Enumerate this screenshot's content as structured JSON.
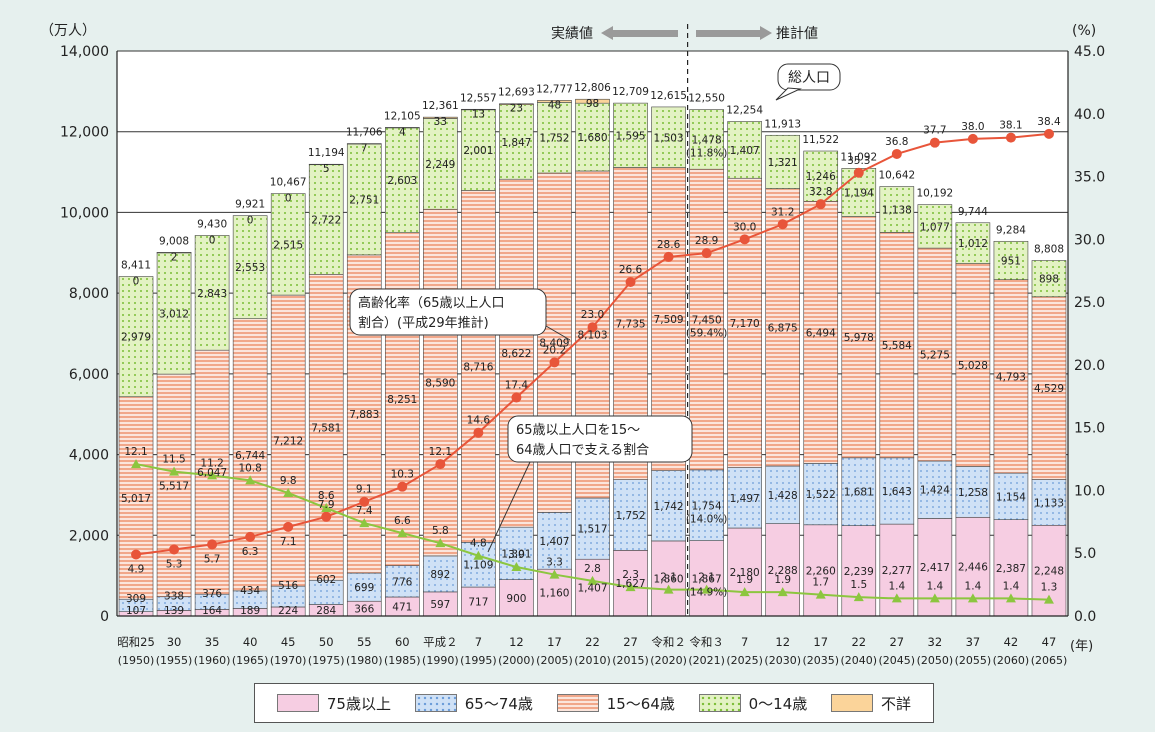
{
  "chart_data": {
    "type": "bar",
    "stacked": true,
    "left_axis_unit": "（万人）",
    "right_axis_unit": "(%)",
    "x_axis_unit": "(年)",
    "y_left_ticks": [
      "0",
      "2,000",
      "4,000",
      "6,000",
      "8,000",
      "10,000",
      "12,000",
      "14,000"
    ],
    "y_left_range": [
      0,
      14000
    ],
    "y_right_ticks": [
      "0.0",
      "5.0",
      "10.0",
      "15.0",
      "20.0",
      "25.0",
      "30.0",
      "35.0",
      "40.0",
      "45.0"
    ],
    "y_right_range": [
      0,
      45
    ],
    "period_labels": {
      "actual": "実績値",
      "projected": "推計値"
    },
    "categories_top": [
      "昭和25",
      "30",
      "35",
      "40",
      "45",
      "50",
      "55",
      "60",
      "平成２",
      "7",
      "12",
      "17",
      "22",
      "27",
      "令和２",
      "令和３",
      "7",
      "12",
      "17",
      "22",
      "27",
      "32",
      "37",
      "42",
      "47"
    ],
    "categories_bottom": [
      "(1950)",
      "(1955)",
      "(1960)",
      "(1965)",
      "(1970)",
      "(1975)",
      "(1980)",
      "(1985)",
      "(1990)",
      "(1995)",
      "(2000)",
      "(2005)",
      "(2010)",
      "(2015)",
      "(2020)",
      "(2021)",
      "(2025)",
      "(2030)",
      "(2035)",
      "(2040)",
      "(2045)",
      "(2050)",
      "(2055)",
      "(2060)",
      "(2065)"
    ],
    "series": [
      {
        "name": "75歳以上",
        "values": [
          107,
          139,
          164,
          189,
          224,
          284,
          366,
          471,
          597,
          717,
          900,
          1160,
          1407,
          1627,
          1860,
          1867,
          2180,
          2288,
          2260,
          2239,
          2277,
          2417,
          2446,
          2387,
          2248
        ]
      },
      {
        "name": "65〜74歳",
        "values": [
          309,
          338,
          376,
          434,
          516,
          602,
          699,
          776,
          892,
          1109,
          1301,
          1407,
          1517,
          1752,
          1742,
          1754,
          1497,
          1428,
          1522,
          1681,
          1643,
          1424,
          1258,
          1154,
          1133
        ]
      },
      {
        "name": "15〜64歳",
        "values": [
          5017,
          5517,
          6047,
          6744,
          7212,
          7581,
          7883,
          8251,
          8590,
          8716,
          8622,
          8409,
          8103,
          7735,
          7509,
          7450,
          7170,
          6875,
          6494,
          5978,
          5584,
          5275,
          5028,
          4793,
          4529
        ]
      },
      {
        "name": "0〜14歳",
        "values": [
          2979,
          3012,
          2843,
          2553,
          2515,
          2722,
          2751,
          2603,
          2249,
          2001,
          1847,
          1752,
          1680,
          1595,
          1503,
          1478,
          1407,
          1321,
          1246,
          1194,
          1138,
          1077,
          1012,
          951,
          898
        ]
      },
      {
        "name": "不詳",
        "values": [
          0,
          2,
          0,
          0,
          0,
          5,
          7,
          4,
          33,
          13,
          23,
          48,
          98,
          0,
          0,
          0,
          0,
          0,
          0,
          0,
          0,
          0,
          0,
          0,
          0
        ]
      }
    ],
    "totals": [
      "8,411",
      "9,008",
      "9,430",
      "9,921",
      "10,467",
      "11,194",
      "11,706",
      "12,105",
      "12,361",
      "12,557",
      "12,693",
      "12,777",
      "12,806",
      "12,709",
      "12,615",
      "12,550",
      "12,254",
      "11,913",
      "11,522",
      "11,092",
      "10,642",
      "10,192",
      "9,744",
      "9,284",
      "8,808"
    ],
    "unknown_labels": [
      "0",
      "2",
      "0",
      "0",
      "0",
      "5",
      "7",
      "4",
      "33",
      "13",
      "23",
      "48",
      "98",
      "",
      "",
      "",
      "",
      "",
      "",
      "",
      "",
      "",
      "",
      "",
      ""
    ],
    "labels_75": [
      "107",
      "139",
      "164",
      "189",
      "224",
      "284",
      "366",
      "471",
      "597",
      "717",
      "900",
      "1,160",
      "1,407",
      "1,627",
      "1,860",
      "1,867",
      "2,180",
      "2,288",
      "2,260",
      "2,239",
      "2,277",
      "2,417",
      "2,446",
      "2,387",
      "2,248"
    ],
    "labels_65": [
      "309",
      "338",
      "376",
      "434",
      "516",
      "602",
      "699",
      "776",
      "892",
      "1,109",
      "1,301",
      "1,407",
      "1,517",
      "1,752",
      "1,742",
      "1,754",
      "1,497",
      "1,428",
      "1,522",
      "1,681",
      "1,643",
      "1,424",
      "1,258",
      "1,154",
      "1,133"
    ],
    "labels_15": [
      "5,017",
      "5,517",
      "6,047",
      "6,744",
      "7,212",
      "7,581",
      "7,883",
      "8,251",
      "8,590",
      "8,716",
      "8,622",
      "8,409",
      "8,103",
      "7,735",
      "7,509",
      "7,450",
      "7,170",
      "6,875",
      "6,494",
      "5,978",
      "5,584",
      "5,275",
      "5,028",
      "4,793",
      "4,529"
    ],
    "labels_0": [
      "2,979",
      "3,012",
      "2,843",
      "2,553",
      "2,515",
      "2,722",
      "2,751",
      "2,603",
      "2,249",
      "2,001",
      "1,847",
      "1,752",
      "1,680",
      "1,595",
      "1,503",
      "1,478",
      "1,407",
      "1,321",
      "1,246",
      "1,194",
      "1,138",
      "1,077",
      "1,012",
      "951",
      "898"
    ],
    "pct_2021": {
      "p0": "(11.8%)",
      "p15": "(59.4%)",
      "p65": "(14.0%)",
      "p75": "(14.9%)"
    },
    "aging_rate": {
      "name": "高齢化率（65歳以上人口割合）(平成29年推計)",
      "values": [
        4.9,
        5.3,
        5.7,
        6.3,
        7.1,
        7.9,
        9.1,
        10.3,
        12.1,
        14.6,
        17.4,
        20.2,
        23.0,
        26.6,
        28.6,
        28.9,
        30.0,
        31.2,
        32.8,
        35.3,
        36.8,
        37.7,
        38.0,
        38.1,
        38.4
      ],
      "labels": [
        "4.9",
        "5.3",
        "5.7",
        "6.3",
        "7.1",
        "7.9",
        "9.1",
        "10.3",
        "12.1",
        "14.6",
        "17.4",
        "20.2",
        "23.0",
        "26.6",
        "28.6",
        "28.9",
        "30.0",
        "31.2",
        "32.8",
        "35.3",
        "36.8",
        "37.7",
        "38.0",
        "38.1",
        "38.4"
      ]
    },
    "support_ratio": {
      "name": "65歳以上人口を15〜64歳人口で支える割合",
      "values": [
        12.1,
        11.5,
        11.2,
        10.8,
        9.8,
        8.6,
        7.4,
        6.6,
        5.8,
        4.8,
        3.9,
        3.3,
        2.8,
        2.3,
        2.1,
        2.1,
        1.9,
        1.9,
        1.7,
        1.5,
        1.4,
        1.4,
        1.4,
        1.4,
        1.3
      ],
      "labels": [
        "12.1",
        "11.5",
        "11.2",
        "10.8",
        "9.8",
        "8.6",
        "7.4",
        "6.6",
        "5.8",
        "4.8",
        "3.9",
        "3.3",
        "2.8",
        "2.3",
        "2.1",
        "2.1",
        "1.9",
        "1.9",
        "1.7",
        "1.5",
        "1.4",
        "1.4",
        "1.4",
        "1.4",
        "1.3"
      ]
    },
    "callouts": {
      "total": "総人口",
      "aging_line1": "高齢化率（65歳以上人口",
      "aging_line2": "割合）(平成29年推計)",
      "support_line1": "65歳以上人口を15〜",
      "support_line2": "64歳人口で支える割合"
    },
    "colors": {
      "c75": "#f6cde2",
      "c65": "#cfe1f6",
      "c65dot": "#6a9bd8",
      "c15": "#f1a78a",
      "c15light": "#fbe5dc",
      "c0": "#e3f2c3",
      "c0dot": "#7bbd35",
      "cun": "#fbd49a",
      "aging_line": "#e8553a",
      "support_line": "#8cc63f",
      "arrow": "#9a9a9a"
    }
  },
  "legend": [
    "75歳以上",
    "65〜74歳",
    "15〜64歳",
    "0〜14歳",
    "不詳"
  ]
}
